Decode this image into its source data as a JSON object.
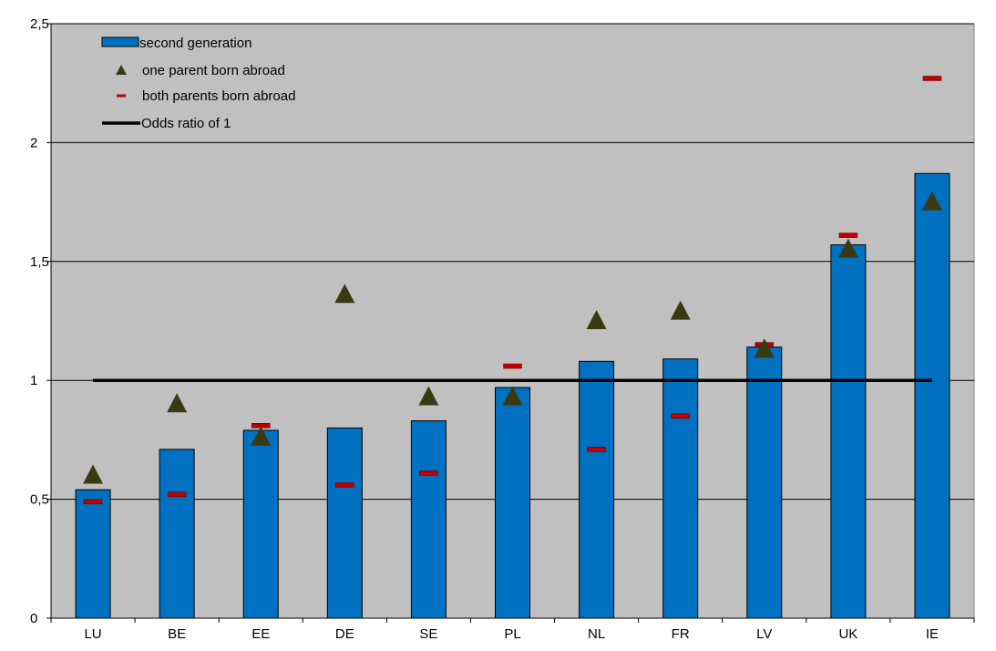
{
  "chart_data": {
    "type": "bar",
    "title": "",
    "xlabel": "",
    "ylabel": "",
    "categories": [
      "LU",
      "BE",
      "EE",
      "DE",
      "SE",
      "PL",
      "NL",
      "FR",
      "LV",
      "UK",
      "IE"
    ],
    "ylim": [
      0,
      2.5
    ],
    "yticks": [
      0,
      0.5,
      1,
      1.5,
      2,
      2.5
    ],
    "ytick_labels": [
      "0",
      "0,5",
      "1",
      "1,5",
      "2",
      "2,5"
    ],
    "grid": true,
    "legend_position": "top-left",
    "series": [
      {
        "name": "second generation",
        "kind": "bar",
        "color": "#0070C0",
        "values": [
          0.54,
          0.71,
          0.79,
          0.8,
          0.83,
          0.97,
          1.08,
          1.09,
          1.14,
          1.57,
          1.87
        ]
      },
      {
        "name": "one parent born abroad",
        "kind": "triangle-marker",
        "color": "#3A3A12",
        "values": [
          0.6,
          0.9,
          0.76,
          1.36,
          0.93,
          0.93,
          1.25,
          1.29,
          1.13,
          1.55,
          1.75
        ]
      },
      {
        "name": "both parents born abroad",
        "kind": "dash-marker",
        "color": "#C00000",
        "values": [
          0.49,
          0.52,
          0.81,
          0.56,
          0.61,
          1.06,
          0.71,
          0.85,
          1.15,
          1.61,
          2.27
        ]
      },
      {
        "name": "Odds ratio of 1",
        "kind": "reference-line",
        "color": "#000000",
        "value": 1
      }
    ],
    "colors": {
      "plot_background": "#C0C0C0",
      "gridline": "#000000"
    }
  }
}
